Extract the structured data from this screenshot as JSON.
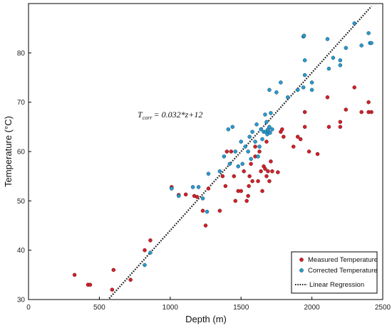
{
  "chart_data": {
    "type": "scatter",
    "xlabel": "Depth (m)",
    "ylabel": "Temperature (°C)",
    "xlim": [
      0,
      2500
    ],
    "ylim": [
      30,
      90
    ],
    "xticks": [
      0,
      500,
      1000,
      1500,
      2000,
      2500
    ],
    "yticks": [
      30,
      40,
      50,
      60,
      70,
      80
    ],
    "grid": false,
    "legend_position": "bottom-right",
    "equation": {
      "main": "T",
      "subscript": "corr",
      "rest": "= 0.032*z+12"
    },
    "regression": {
      "name": "Linear Regression",
      "slope": 0.032,
      "intercept": 12,
      "x_range": [
        570,
        2420
      ],
      "color": "#111111"
    },
    "series": [
      {
        "name": "Measured Temperature",
        "color": "#d4202a",
        "points": [
          [
            325,
            35
          ],
          [
            420,
            33
          ],
          [
            435,
            33
          ],
          [
            590,
            32
          ],
          [
            600,
            36
          ],
          [
            720,
            34
          ],
          [
            820,
            40
          ],
          [
            860,
            42
          ],
          [
            1010,
            52.8
          ],
          [
            1060,
            51.2
          ],
          [
            1110,
            51.3
          ],
          [
            1170,
            51
          ],
          [
            1190,
            50.8
          ],
          [
            1230,
            48
          ],
          [
            1250,
            45
          ],
          [
            1270,
            52.5
          ],
          [
            1350,
            48
          ],
          [
            1370,
            55
          ],
          [
            1390,
            53
          ],
          [
            1400,
            60
          ],
          [
            1430,
            60
          ],
          [
            1450,
            55
          ],
          [
            1460,
            50
          ],
          [
            1480,
            52
          ],
          [
            1500,
            52
          ],
          [
            1520,
            56
          ],
          [
            1540,
            50
          ],
          [
            1550,
            51
          ],
          [
            1555,
            53
          ],
          [
            1560,
            55
          ],
          [
            1570,
            57.5
          ],
          [
            1580,
            54
          ],
          [
            1600,
            59
          ],
          [
            1620,
            54
          ],
          [
            1640,
            56
          ],
          [
            1650,
            52
          ],
          [
            1660,
            57
          ],
          [
            1670,
            56.5
          ],
          [
            1680,
            55
          ],
          [
            1690,
            56
          ],
          [
            1700,
            54
          ],
          [
            1710,
            58
          ],
          [
            1720,
            56
          ],
          [
            1630,
            60
          ],
          [
            1600,
            61
          ],
          [
            1680,
            62
          ],
          [
            1760,
            55.8
          ],
          [
            1780,
            64
          ],
          [
            1790,
            64.5
          ],
          [
            1800,
            63
          ],
          [
            1870,
            61
          ],
          [
            1900,
            63
          ],
          [
            1920,
            62.5
          ],
          [
            1950,
            65
          ],
          [
            1950,
            68
          ],
          [
            1980,
            60
          ],
          [
            2040,
            59.5
          ],
          [
            2110,
            71
          ],
          [
            2120,
            65
          ],
          [
            2200,
            66
          ],
          [
            2200,
            65
          ],
          [
            2240,
            68.5
          ],
          [
            2300,
            73
          ],
          [
            2350,
            68
          ],
          [
            2400,
            70
          ],
          [
            2400,
            68
          ],
          [
            2420,
            68
          ]
        ]
      },
      {
        "name": "Corrected Temperature",
        "color": "#2a9bd0",
        "points": [
          [
            820,
            37
          ],
          [
            860,
            39.5
          ],
          [
            1010,
            52.5
          ],
          [
            1060,
            51
          ],
          [
            1160,
            52.8
          ],
          [
            1200,
            52.8
          ],
          [
            1230,
            50.5
          ],
          [
            1260,
            47.8
          ],
          [
            1270,
            55.5
          ],
          [
            1350,
            56
          ],
          [
            1380,
            59
          ],
          [
            1410,
            64.5
          ],
          [
            1420,
            57.5
          ],
          [
            1440,
            65
          ],
          [
            1460,
            60
          ],
          [
            1480,
            57
          ],
          [
            1500,
            62
          ],
          [
            1510,
            57.5
          ],
          [
            1530,
            61
          ],
          [
            1550,
            60
          ],
          [
            1560,
            63
          ],
          [
            1570,
            58.5
          ],
          [
            1580,
            64
          ],
          [
            1600,
            62
          ],
          [
            1610,
            65.5
          ],
          [
            1620,
            59
          ],
          [
            1630,
            61
          ],
          [
            1640,
            64.5
          ],
          [
            1650,
            62.5
          ],
          [
            1660,
            64
          ],
          [
            1670,
            67.5
          ],
          [
            1675,
            64
          ],
          [
            1680,
            66
          ],
          [
            1685,
            63.5
          ],
          [
            1690,
            64.5
          ],
          [
            1695,
            64
          ],
          [
            1700,
            65
          ],
          [
            1705,
            63.8
          ],
          [
            1710,
            67.8
          ],
          [
            1720,
            64.5
          ],
          [
            1700,
            72.5
          ],
          [
            1750,
            72
          ],
          [
            1780,
            74
          ],
          [
            1830,
            71
          ],
          [
            1900,
            72.5
          ],
          [
            1940,
            73
          ],
          [
            1950,
            75.5
          ],
          [
            1950,
            78.5
          ],
          [
            1940,
            83.3
          ],
          [
            1945,
            83.5
          ],
          [
            2000,
            74
          ],
          [
            2000,
            72.5
          ],
          [
            2110,
            82.8
          ],
          [
            2120,
            76.8
          ],
          [
            2150,
            79
          ],
          [
            2200,
            78.5
          ],
          [
            2200,
            77.5
          ],
          [
            2240,
            81
          ],
          [
            2300,
            86
          ],
          [
            2350,
            81.5
          ],
          [
            2400,
            84
          ],
          [
            2410,
            82
          ],
          [
            2420,
            82
          ]
        ]
      }
    ]
  }
}
